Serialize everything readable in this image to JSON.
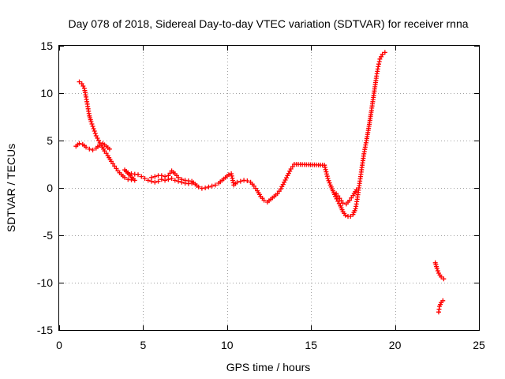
{
  "chart_data": {
    "type": "scatter",
    "title": "Day 078 of 2018, Sidereal Day-to-day VTEC variation (SDTVAR) for receiver rnna",
    "xlabel": "GPS time / hours",
    "ylabel": "SDTVAR / TECUs",
    "xlim": [
      0,
      25
    ],
    "ylim": [
      -15,
      15
    ],
    "xticks": [
      0,
      5,
      10,
      15,
      20,
      25
    ],
    "yticks": [
      -15,
      -10,
      -5,
      0,
      5,
      10,
      15
    ],
    "grid": true,
    "marker_color": "#ff0000",
    "marker": "plus",
    "series": [
      {
        "points": [
          [
            1.0,
            4.4
          ],
          [
            1.2,
            4.7
          ],
          [
            1.4,
            4.6
          ],
          [
            1.6,
            4.3
          ],
          [
            1.8,
            4.1
          ],
          [
            2.0,
            4.0
          ],
          [
            2.2,
            4.2
          ],
          [
            2.4,
            4.5
          ],
          [
            2.6,
            4.7
          ],
          [
            2.8,
            4.4
          ],
          [
            3.0,
            4.1
          ],
          [
            1.2,
            11.2
          ],
          [
            1.35,
            11.0
          ],
          [
            1.5,
            10.5
          ],
          [
            1.6,
            9.6
          ],
          [
            1.7,
            8.6
          ],
          [
            1.8,
            7.6
          ],
          [
            1.9,
            7.0
          ],
          [
            2.0,
            6.5
          ],
          [
            2.1,
            6.0
          ],
          [
            2.2,
            5.5
          ],
          [
            2.35,
            5.0
          ],
          [
            2.5,
            4.5
          ],
          [
            2.7,
            3.9
          ],
          [
            2.9,
            3.4
          ],
          [
            3.1,
            2.8
          ],
          [
            3.3,
            2.3
          ],
          [
            3.5,
            1.8
          ],
          [
            3.7,
            1.4
          ],
          [
            3.9,
            1.1
          ],
          [
            4.1,
            0.9
          ],
          [
            4.3,
            0.85
          ],
          [
            4.5,
            0.8
          ],
          [
            3.9,
            1.9
          ],
          [
            4.1,
            1.6
          ],
          [
            4.3,
            1.5
          ],
          [
            4.5,
            1.45
          ],
          [
            4.7,
            1.4
          ],
          [
            4.9,
            1.2
          ],
          [
            5.1,
            1.0
          ],
          [
            5.3,
            0.8
          ],
          [
            5.5,
            0.7
          ],
          [
            5.7,
            0.6
          ],
          [
            5.9,
            0.7
          ],
          [
            6.1,
            0.9
          ],
          [
            6.3,
            0.8
          ],
          [
            6.5,
            0.9
          ],
          [
            6.7,
            1.0
          ],
          [
            6.9,
            0.8
          ],
          [
            7.1,
            0.7
          ],
          [
            7.3,
            0.6
          ],
          [
            7.5,
            0.5
          ],
          [
            7.7,
            0.45
          ],
          [
            7.9,
            0.5
          ],
          [
            5.5,
            1.1
          ],
          [
            5.7,
            1.2
          ],
          [
            5.9,
            1.3
          ],
          [
            6.1,
            1.3
          ],
          [
            6.3,
            1.2
          ],
          [
            6.5,
            1.3
          ],
          [
            6.7,
            1.8
          ],
          [
            6.9,
            1.5
          ],
          [
            7.1,
            1.1
          ],
          [
            7.3,
            0.9
          ],
          [
            7.5,
            0.8
          ],
          [
            7.7,
            0.75
          ],
          [
            7.9,
            0.7
          ],
          [
            8.1,
            0.4
          ],
          [
            8.3,
            0.1
          ],
          [
            8.5,
            -0.05
          ],
          [
            8.7,
            0.0
          ],
          [
            8.9,
            0.1
          ],
          [
            9.1,
            0.2
          ],
          [
            9.3,
            0.3
          ],
          [
            9.5,
            0.5
          ],
          [
            9.7,
            0.8
          ],
          [
            9.9,
            1.1
          ],
          [
            10.1,
            1.4
          ],
          [
            10.25,
            1.5
          ],
          [
            10.4,
            0.3
          ],
          [
            10.6,
            0.6
          ],
          [
            10.8,
            0.7
          ],
          [
            11.0,
            0.8
          ],
          [
            11.2,
            0.75
          ],
          [
            11.4,
            0.6
          ],
          [
            11.6,
            0.2
          ],
          [
            11.8,
            -0.3
          ],
          [
            12.0,
            -0.9
          ],
          [
            12.2,
            -1.3
          ],
          [
            12.4,
            -1.5
          ],
          [
            12.6,
            -1.2
          ],
          [
            12.8,
            -0.9
          ],
          [
            13.0,
            -0.6
          ],
          [
            13.2,
            -0.1
          ],
          [
            13.4,
            0.6
          ],
          [
            13.6,
            1.3
          ],
          [
            13.8,
            2.0
          ],
          [
            14.0,
            2.5
          ],
          [
            15.8,
            2.4
          ],
          [
            15.9,
            1.7
          ],
          [
            16.0,
            1.0
          ],
          [
            16.15,
            0.3
          ],
          [
            16.3,
            -0.3
          ],
          [
            16.45,
            -0.9
          ],
          [
            16.6,
            -1.4
          ],
          [
            16.75,
            -1.9
          ],
          [
            16.9,
            -2.5
          ],
          [
            17.05,
            -2.9
          ],
          [
            17.2,
            -3.0
          ],
          [
            17.35,
            -3.0
          ],
          [
            17.5,
            -2.8
          ],
          [
            17.65,
            -2.2
          ],
          [
            17.75,
            -1.2
          ],
          [
            17.85,
            0.0
          ],
          [
            17.95,
            1.2
          ],
          [
            18.05,
            2.4
          ],
          [
            18.15,
            3.6
          ],
          [
            18.3,
            5.0
          ],
          [
            18.45,
            6.5
          ],
          [
            18.6,
            8.2
          ],
          [
            18.75,
            10.0
          ],
          [
            18.9,
            11.8
          ],
          [
            19.0,
            12.8
          ],
          [
            19.1,
            13.6
          ],
          [
            19.25,
            14.1
          ],
          [
            19.4,
            14.3
          ],
          [
            16.5,
            -0.6
          ],
          [
            16.7,
            -1.1
          ],
          [
            16.9,
            -1.6
          ],
          [
            17.1,
            -1.7
          ],
          [
            17.3,
            -1.3
          ],
          [
            17.5,
            -0.8
          ],
          [
            17.7,
            -0.2
          ],
          [
            22.4,
            -7.9
          ],
          [
            22.5,
            -8.5
          ],
          [
            22.6,
            -9.0
          ],
          [
            22.75,
            -9.4
          ],
          [
            22.9,
            -9.6
          ],
          [
            22.6,
            -13.1
          ],
          [
            22.65,
            -12.5
          ],
          [
            22.75,
            -12.1
          ],
          [
            22.85,
            -11.9
          ]
        ]
      }
    ]
  }
}
